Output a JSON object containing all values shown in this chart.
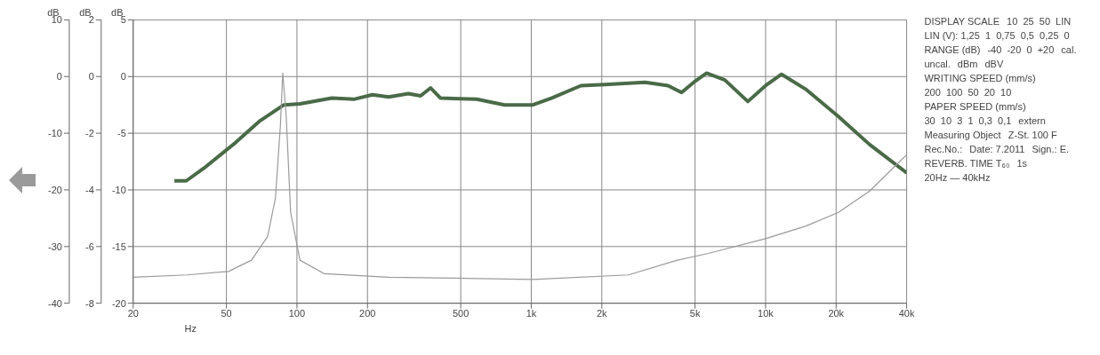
{
  "chart_data": {
    "type": "line",
    "xlim": [
      20,
      40000
    ],
    "log": "x",
    "xticks": [
      20,
      50,
      100,
      200,
      500,
      {
        "value": 1000,
        "label": "1k"
      },
      {
        "value": 2000,
        "label": "2k"
      },
      {
        "value": 5000,
        "label": "5k"
      },
      {
        "value": 10000,
        "label": "10k"
      },
      {
        "value": 20000,
        "label": "20k"
      },
      {
        "value": 40000,
        "label": "40k"
      }
    ],
    "xlabel": "Hz",
    "ylim": [
      -20,
      5
    ],
    "yticks": [
      5,
      0,
      -5,
      -10,
      -15,
      -20
    ],
    "ylabel": "dB",
    "y2lim": [
      -8,
      2
    ],
    "y2ticks": [
      2,
      0,
      -2,
      -4,
      -6,
      -8
    ],
    "y2label": "dB",
    "y3lim": [
      -40,
      10
    ],
    "y3ticks": [
      10,
      0,
      -10,
      -20,
      -30,
      -40
    ],
    "y3label": "dB",
    "grid": true,
    "marker": "none",
    "line_style": "solid",
    "series": [
      {
        "color": "#4a6a48",
        "x": [
          30,
          33.7,
          40,
          54.9,
          69.6,
          88,
          103,
          141,
          175,
          210,
          246,
          299,
          337,
          372,
          410,
          585,
          769,
          1016,
          1219,
          1630,
          2062,
          3060,
          3833,
          4379,
          4937,
          5600,
          6700,
          8400,
          10000,
          11700,
          14800,
          20400,
          27800,
          40000
        ],
        "values": [
          -9.2,
          -9.2,
          -8.1,
          -5.8,
          -3.9,
          -2.5,
          -2.4,
          -1.9,
          -2.0,
          -1.6,
          -1.8,
          -1.5,
          -1.7,
          -1.0,
          -1.9,
          -2.0,
          -2.5,
          -2.5,
          -1.9,
          -0.8,
          -0.7,
          -0.5,
          -0.8,
          -1.4,
          -0.5,
          0.3,
          -0.3,
          -2.2,
          -0.8,
          0.2,
          -1.1,
          -3.5,
          -6.0,
          -8.5
        ]
      },
      {
        "color": "#9a9a9a",
        "x": [
          20,
          34,
          51,
          64,
          75,
          81,
          85,
          87,
          90,
          94,
          103,
          131,
          246,
          1016,
          2600,
          4200,
          5700,
          10000,
          14800,
          20400,
          27800,
          40000
        ],
        "values": [
          -17.7,
          -17.5,
          -17.2,
          -16.2,
          -14.1,
          -10.7,
          -4.3,
          0.3,
          -3.5,
          -12,
          -16.2,
          -17.4,
          -17.7,
          -17.9,
          -17.5,
          -16.2,
          -15.6,
          -14.3,
          -13.2,
          -12,
          -10.1,
          -6.9
        ]
      }
    ],
    "annotations": [
      "DISPLAY SCALE",
      "10  25  50  LIN",
      "LIN (V): 1,25  1  0,75  0,5  0,25  0",
      "RANGE (dB)",
      "-40  -20  0  +20",
      "cal.",
      "uncal.",
      "dBm",
      "dBV",
      "WRITING SPEED (mm/s)",
      "200  100  50  20  10",
      "PAPER SPEED (mm/s)",
      "30  10  3  1  0,3  0,1",
      "extern",
      "Measuring Object",
      "Z-St. 100 F",
      "Rec.No.:",
      "Date: 7.2011",
      "Sign.: E.",
      "REVERB. TIME T₆₀",
      "1s",
      "20Hz — 40kHz"
    ]
  }
}
